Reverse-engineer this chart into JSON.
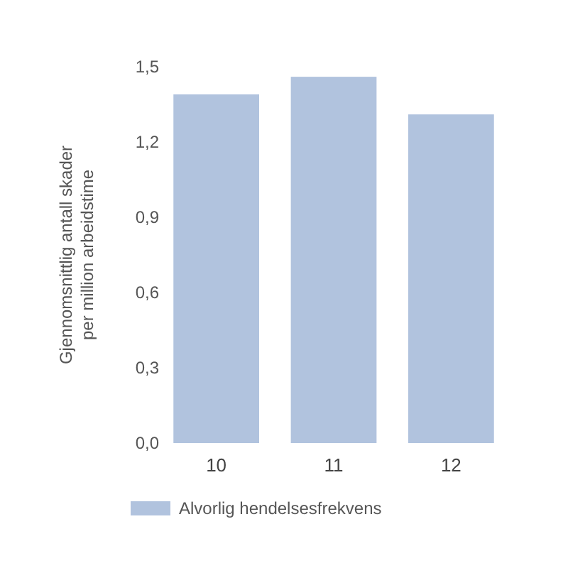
{
  "chart_data": {
    "type": "bar",
    "ylabel": "Gjennomsnittlig antall skader\nper million arbeidstime",
    "categories": [
      "10",
      "11",
      "12"
    ],
    "series": [
      {
        "name": "Alvorlig hendelsesfrekvens",
        "color": "#b1c3de",
        "values": [
          1.39,
          1.46,
          1.31
        ]
      }
    ],
    "ylim": [
      0,
      1.5
    ],
    "yticks": [
      {
        "value": 0,
        "label": "0,0"
      },
      {
        "value": 0.3,
        "label": "0,3"
      },
      {
        "value": 0.6,
        "label": "0,6"
      },
      {
        "value": 0.9,
        "label": "0,9"
      },
      {
        "value": 1.2,
        "label": "1,2"
      },
      {
        "value": 1.5,
        "label": "1,5"
      }
    ],
    "grid": false,
    "legend": "bottom"
  }
}
